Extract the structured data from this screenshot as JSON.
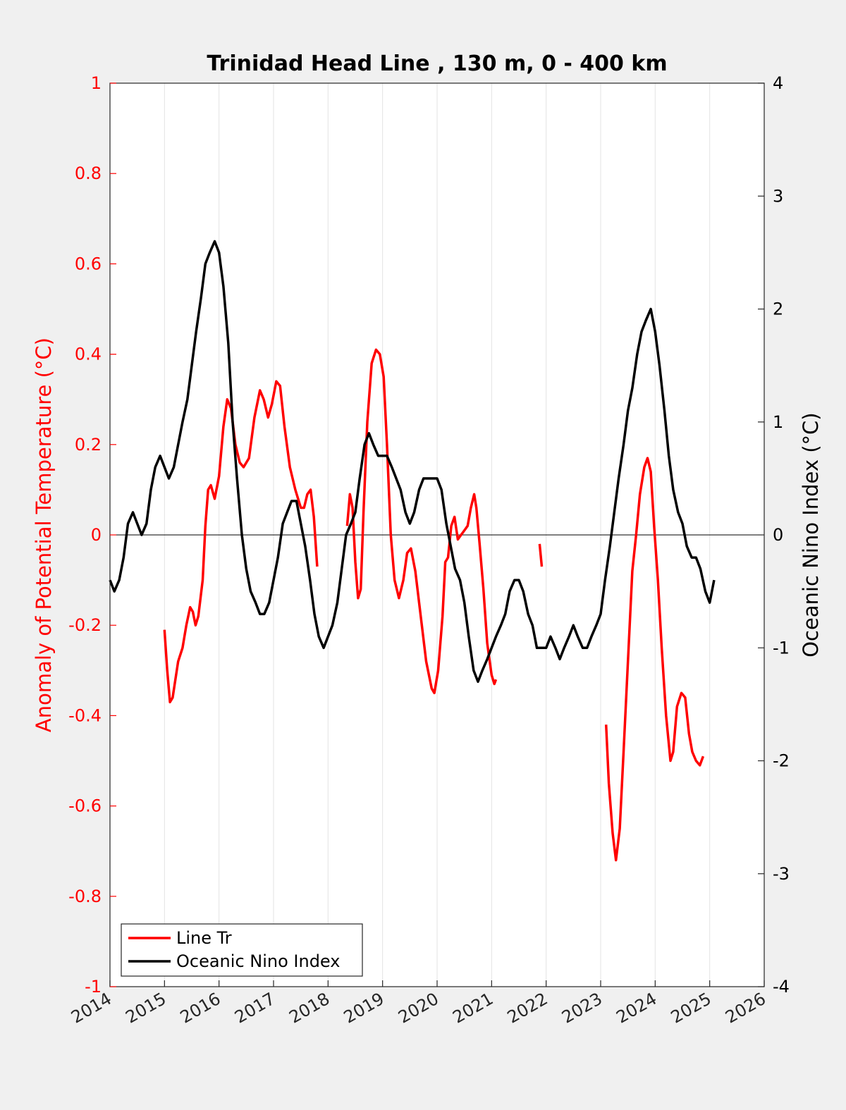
{
  "chart_data": {
    "type": "line",
    "title": "Trinidad Head Line , 130 m, 0 - 400 km",
    "xlim": [
      2014,
      2026
    ],
    "x_ticks": [
      "2014",
      "2015",
      "2016",
      "2017",
      "2018",
      "2019",
      "2020",
      "2021",
      "2022",
      "2023",
      "2024",
      "2025",
      "2026"
    ],
    "ylabel_left": "Anomaly of Potential Temperature (°C)",
    "ylim_left": [
      -1,
      1
    ],
    "y_ticks_left": [
      "1",
      "0.8",
      "0.6",
      "0.4",
      "0.2",
      "0",
      "-0.2",
      "-0.4",
      "-0.6",
      "-0.8",
      "-1"
    ],
    "ylabel_right": "Oceanic Nino Index (°C)",
    "ylim_right": [
      -4,
      4
    ],
    "y_ticks_right": [
      "4",
      "3",
      "2",
      "1",
      "0",
      "-1",
      "-2",
      "-3",
      "-4"
    ],
    "grid_x": true,
    "zero_line": true,
    "legend_position": "bottom-left",
    "colors": {
      "line_tr": "#ff0000",
      "oni": "#000000"
    },
    "series": [
      {
        "name": "Line Tr",
        "axis": "left",
        "segments": [
          [
            [
              2015.0,
              -0.21
            ],
            [
              2015.05,
              -0.3
            ],
            [
              2015.1,
              -0.37
            ],
            [
              2015.15,
              -0.36
            ],
            [
              2015.2,
              -0.32
            ],
            [
              2015.25,
              -0.28
            ],
            [
              2015.33,
              -0.25
            ],
            [
              2015.4,
              -0.2
            ],
            [
              2015.47,
              -0.16
            ],
            [
              2015.52,
              -0.17
            ],
            [
              2015.57,
              -0.2
            ],
            [
              2015.62,
              -0.18
            ],
            [
              2015.7,
              -0.1
            ],
            [
              2015.75,
              0.02
            ],
            [
              2015.8,
              0.1
            ],
            [
              2015.85,
              0.11
            ],
            [
              2015.92,
              0.08
            ],
            [
              2016.0,
              0.13
            ],
            [
              2016.08,
              0.24
            ],
            [
              2016.15,
              0.3
            ],
            [
              2016.22,
              0.28
            ],
            [
              2016.3,
              0.2
            ],
            [
              2016.38,
              0.16
            ],
            [
              2016.45,
              0.15
            ],
            [
              2016.55,
              0.17
            ],
            [
              2016.65,
              0.26
            ],
            [
              2016.75,
              0.32
            ],
            [
              2016.82,
              0.3
            ],
            [
              2016.9,
              0.26
            ],
            [
              2016.97,
              0.29
            ],
            [
              2017.05,
              0.34
            ],
            [
              2017.12,
              0.33
            ],
            [
              2017.2,
              0.24
            ],
            [
              2017.3,
              0.15
            ],
            [
              2017.4,
              0.1
            ],
            [
              2017.5,
              0.06
            ],
            [
              2017.56,
              0.06
            ],
            [
              2017.62,
              0.09
            ],
            [
              2017.68,
              0.1
            ],
            [
              2017.74,
              0.04
            ],
            [
              2017.8,
              -0.07
            ]
          ],
          [
            [
              2018.35,
              0.02
            ],
            [
              2018.4,
              0.09
            ],
            [
              2018.45,
              0.06
            ],
            [
              2018.5,
              -0.06
            ],
            [
              2018.55,
              -0.14
            ],
            [
              2018.6,
              -0.12
            ],
            [
              2018.65,
              0.05
            ],
            [
              2018.72,
              0.25
            ],
            [
              2018.8,
              0.38
            ],
            [
              2018.88,
              0.41
            ],
            [
              2018.95,
              0.4
            ],
            [
              2019.02,
              0.35
            ],
            [
              2019.08,
              0.2
            ],
            [
              2019.15,
              0.0
            ],
            [
              2019.22,
              -0.1
            ],
            [
              2019.3,
              -0.14
            ],
            [
              2019.38,
              -0.1
            ],
            [
              2019.45,
              -0.04
            ],
            [
              2019.52,
              -0.03
            ],
            [
              2019.6,
              -0.08
            ],
            [
              2019.7,
              -0.18
            ],
            [
              2019.8,
              -0.28
            ],
            [
              2019.9,
              -0.34
            ],
            [
              2019.95,
              -0.35
            ],
            [
              2020.02,
              -0.3
            ],
            [
              2020.1,
              -0.18
            ],
            [
              2020.15,
              -0.06
            ],
            [
              2020.2,
              -0.05
            ],
            [
              2020.26,
              0.02
            ],
            [
              2020.32,
              0.04
            ],
            [
              2020.38,
              -0.01
            ],
            [
              2020.44,
              0.0
            ],
            [
              2020.5,
              0.01
            ],
            [
              2020.56,
              0.02
            ],
            [
              2020.62,
              0.06
            ],
            [
              2020.68,
              0.09
            ],
            [
              2020.72,
              0.06
            ],
            [
              2020.78,
              -0.02
            ],
            [
              2020.85,
              -0.12
            ],
            [
              2020.92,
              -0.24
            ],
            [
              2021.0,
              -0.31
            ],
            [
              2021.05,
              -0.33
            ],
            [
              2021.08,
              -0.32
            ]
          ],
          [
            [
              2021.88,
              -0.02
            ],
            [
              2021.92,
              -0.07
            ]
          ],
          [
            [
              2023.1,
              -0.42
            ],
            [
              2023.15,
              -0.55
            ],
            [
              2023.22,
              -0.66
            ],
            [
              2023.28,
              -0.72
            ],
            [
              2023.35,
              -0.65
            ],
            [
              2023.42,
              -0.48
            ],
            [
              2023.5,
              -0.28
            ],
            [
              2023.58,
              -0.08
            ],
            [
              2023.65,
              0.0
            ],
            [
              2023.72,
              0.09
            ],
            [
              2023.8,
              0.15
            ],
            [
              2023.86,
              0.17
            ],
            [
              2023.92,
              0.14
            ],
            [
              2023.98,
              0.02
            ],
            [
              2024.05,
              -0.1
            ],
            [
              2024.12,
              -0.25
            ],
            [
              2024.2,
              -0.4
            ],
            [
              2024.28,
              -0.5
            ],
            [
              2024.33,
              -0.48
            ],
            [
              2024.4,
              -0.38
            ],
            [
              2024.48,
              -0.35
            ],
            [
              2024.55,
              -0.36
            ],
            [
              2024.62,
              -0.44
            ],
            [
              2024.68,
              -0.48
            ],
            [
              2024.75,
              -0.5
            ],
            [
              2024.82,
              -0.51
            ],
            [
              2024.88,
              -0.49
            ]
          ]
        ]
      },
      {
        "name": "Oceanic Nino Index",
        "axis": "right",
        "points": [
          [
            2014.0,
            -0.4
          ],
          [
            2014.08,
            -0.5
          ],
          [
            2014.17,
            -0.4
          ],
          [
            2014.25,
            -0.2
          ],
          [
            2014.33,
            0.1
          ],
          [
            2014.42,
            0.2
          ],
          [
            2014.5,
            0.1
          ],
          [
            2014.58,
            0.0
          ],
          [
            2014.67,
            0.1
          ],
          [
            2014.75,
            0.4
          ],
          [
            2014.83,
            0.6
          ],
          [
            2014.92,
            0.7
          ],
          [
            2015.0,
            0.6
          ],
          [
            2015.08,
            0.5
          ],
          [
            2015.17,
            0.6
          ],
          [
            2015.25,
            0.8
          ],
          [
            2015.33,
            1.0
          ],
          [
            2015.42,
            1.2
          ],
          [
            2015.5,
            1.5
          ],
          [
            2015.58,
            1.8
          ],
          [
            2015.67,
            2.1
          ],
          [
            2015.75,
            2.4
          ],
          [
            2015.83,
            2.5
          ],
          [
            2015.92,
            2.6
          ],
          [
            2016.0,
            2.5
          ],
          [
            2016.08,
            2.2
          ],
          [
            2016.17,
            1.7
          ],
          [
            2016.25,
            1.0
          ],
          [
            2016.33,
            0.5
          ],
          [
            2016.42,
            0.0
          ],
          [
            2016.5,
            -0.3
          ],
          [
            2016.58,
            -0.5
          ],
          [
            2016.67,
            -0.6
          ],
          [
            2016.75,
            -0.7
          ],
          [
            2016.83,
            -0.7
          ],
          [
            2016.92,
            -0.6
          ],
          [
            2017.0,
            -0.4
          ],
          [
            2017.08,
            -0.2
          ],
          [
            2017.17,
            0.1
          ],
          [
            2017.25,
            0.2
          ],
          [
            2017.33,
            0.3
          ],
          [
            2017.42,
            0.3
          ],
          [
            2017.5,
            0.1
          ],
          [
            2017.58,
            -0.1
          ],
          [
            2017.67,
            -0.4
          ],
          [
            2017.75,
            -0.7
          ],
          [
            2017.83,
            -0.9
          ],
          [
            2017.92,
            -1.0
          ],
          [
            2018.0,
            -0.9
          ],
          [
            2018.08,
            -0.8
          ],
          [
            2018.17,
            -0.6
          ],
          [
            2018.25,
            -0.3
          ],
          [
            2018.33,
            0.0
          ],
          [
            2018.42,
            0.1
          ],
          [
            2018.5,
            0.2
          ],
          [
            2018.58,
            0.5
          ],
          [
            2018.67,
            0.8
          ],
          [
            2018.75,
            0.9
          ],
          [
            2018.83,
            0.8
          ],
          [
            2018.92,
            0.7
          ],
          [
            2019.0,
            0.7
          ],
          [
            2019.08,
            0.7
          ],
          [
            2019.17,
            0.6
          ],
          [
            2019.25,
            0.5
          ],
          [
            2019.33,
            0.4
          ],
          [
            2019.42,
            0.2
          ],
          [
            2019.5,
            0.1
          ],
          [
            2019.58,
            0.2
          ],
          [
            2019.67,
            0.4
          ],
          [
            2019.75,
            0.5
          ],
          [
            2019.83,
            0.5
          ],
          [
            2019.92,
            0.5
          ],
          [
            2020.0,
            0.5
          ],
          [
            2020.08,
            0.4
          ],
          [
            2020.17,
            0.1
          ],
          [
            2020.25,
            -0.1
          ],
          [
            2020.33,
            -0.3
          ],
          [
            2020.42,
            -0.4
          ],
          [
            2020.5,
            -0.6
          ],
          [
            2020.58,
            -0.9
          ],
          [
            2020.67,
            -1.2
          ],
          [
            2020.75,
            -1.3
          ],
          [
            2020.83,
            -1.2
          ],
          [
            2020.92,
            -1.1
          ],
          [
            2021.0,
            -1.0
          ],
          [
            2021.08,
            -0.9
          ],
          [
            2021.17,
            -0.8
          ],
          [
            2021.25,
            -0.7
          ],
          [
            2021.33,
            -0.5
          ],
          [
            2021.42,
            -0.4
          ],
          [
            2021.5,
            -0.4
          ],
          [
            2021.58,
            -0.5
          ],
          [
            2021.67,
            -0.7
          ],
          [
            2021.75,
            -0.8
          ],
          [
            2021.83,
            -1.0
          ],
          [
            2021.92,
            -1.0
          ],
          [
            2022.0,
            -1.0
          ],
          [
            2022.08,
            -0.9
          ],
          [
            2022.17,
            -1.0
          ],
          [
            2022.25,
            -1.1
          ],
          [
            2022.33,
            -1.0
          ],
          [
            2022.42,
            -0.9
          ],
          [
            2022.5,
            -0.8
          ],
          [
            2022.58,
            -0.9
          ],
          [
            2022.67,
            -1.0
          ],
          [
            2022.75,
            -1.0
          ],
          [
            2022.83,
            -0.9
          ],
          [
            2022.92,
            -0.8
          ],
          [
            2023.0,
            -0.7
          ],
          [
            2023.08,
            -0.4
          ],
          [
            2023.17,
            -0.1
          ],
          [
            2023.25,
            0.2
          ],
          [
            2023.33,
            0.5
          ],
          [
            2023.42,
            0.8
          ],
          [
            2023.5,
            1.1
          ],
          [
            2023.58,
            1.3
          ],
          [
            2023.67,
            1.6
          ],
          [
            2023.75,
            1.8
          ],
          [
            2023.83,
            1.9
          ],
          [
            2023.92,
            2.0
          ],
          [
            2024.0,
            1.8
          ],
          [
            2024.08,
            1.5
          ],
          [
            2024.17,
            1.1
          ],
          [
            2024.25,
            0.7
          ],
          [
            2024.33,
            0.4
          ],
          [
            2024.42,
            0.2
          ],
          [
            2024.5,
            0.1
          ],
          [
            2024.58,
            -0.1
          ],
          [
            2024.67,
            -0.2
          ],
          [
            2024.75,
            -0.2
          ],
          [
            2024.83,
            -0.3
          ],
          [
            2024.92,
            -0.5
          ],
          [
            2025.0,
            -0.6
          ],
          [
            2025.08,
            -0.4
          ]
        ]
      }
    ]
  }
}
